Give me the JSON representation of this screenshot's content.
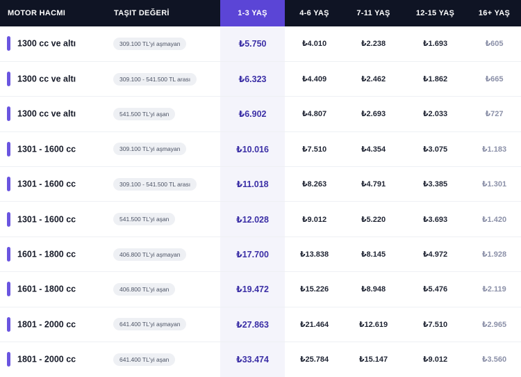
{
  "headers": {
    "motor": "MOTOR HACMI",
    "deger": "TAŞIT DEĞERİ",
    "y1": "1-3 YAŞ",
    "y2": "4-6 YAŞ",
    "y3": "7-11 YAŞ",
    "y4": "12-15 YAŞ",
    "y5": "16+ YAŞ"
  },
  "rows": [
    {
      "motor": "1300 cc ve altı",
      "deger": "309.100 TL'yi aşmayan",
      "y1": "₺5.750",
      "y2": "₺4.010",
      "y3": "₺2.238",
      "y4": "₺1.693",
      "y5": "₺605"
    },
    {
      "motor": "1300 cc ve altı",
      "deger": "309.100 - 541.500 TL arası",
      "y1": "₺6.323",
      "y2": "₺4.409",
      "y3": "₺2.462",
      "y4": "₺1.862",
      "y5": "₺665"
    },
    {
      "motor": "1300 cc ve altı",
      "deger": "541.500 TL'yi aşan",
      "y1": "₺6.902",
      "y2": "₺4.807",
      "y3": "₺2.693",
      "y4": "₺2.033",
      "y5": "₺727"
    },
    {
      "motor": "1301 - 1600 cc",
      "deger": "309.100 TL'yi aşmayan",
      "y1": "₺10.016",
      "y2": "₺7.510",
      "y3": "₺4.354",
      "y4": "₺3.075",
      "y5": "₺1.183"
    },
    {
      "motor": "1301 - 1600 cc",
      "deger": "309.100 - 541.500 TL arası",
      "y1": "₺11.018",
      "y2": "₺8.263",
      "y3": "₺4.791",
      "y4": "₺3.385",
      "y5": "₺1.301"
    },
    {
      "motor": "1301 - 1600 cc",
      "deger": "541.500 TL'yi aşan",
      "y1": "₺12.028",
      "y2": "₺9.012",
      "y3": "₺5.220",
      "y4": "₺3.693",
      "y5": "₺1.420"
    },
    {
      "motor": "1601 - 1800 cc",
      "deger": "406.800 TL'yi aşmayan",
      "y1": "₺17.700",
      "y2": "₺13.838",
      "y3": "₺8.145",
      "y4": "₺4.972",
      "y5": "₺1.928"
    },
    {
      "motor": "1601 - 1800 cc",
      "deger": "406.800 TL'yi aşan",
      "y1": "₺19.472",
      "y2": "₺15.226",
      "y3": "₺8.948",
      "y4": "₺5.476",
      "y5": "₺2.119"
    },
    {
      "motor": "1801 - 2000 cc",
      "deger": "641.400 TL'yi aşmayan",
      "y1": "₺27.863",
      "y2": "₺21.464",
      "y3": "₺12.619",
      "y4": "₺7.510",
      "y5": "₺2.965"
    },
    {
      "motor": "1801 - 2000 cc",
      "deger": "641.400 TL'yi aşan",
      "y1": "₺33.474",
      "y2": "₺25.784",
      "y3": "₺15.147",
      "y4": "₺9.012",
      "y5": "₺3.560"
    }
  ],
  "colors": {
    "header_bg": "#0f1424",
    "highlight_header": "#5b45d6",
    "highlight_column_bg": "#f4f4fb",
    "highlight_text": "#3b2fa6",
    "row_accent_bar": "#6a55e0",
    "muted_text": "#8b90a8"
  }
}
